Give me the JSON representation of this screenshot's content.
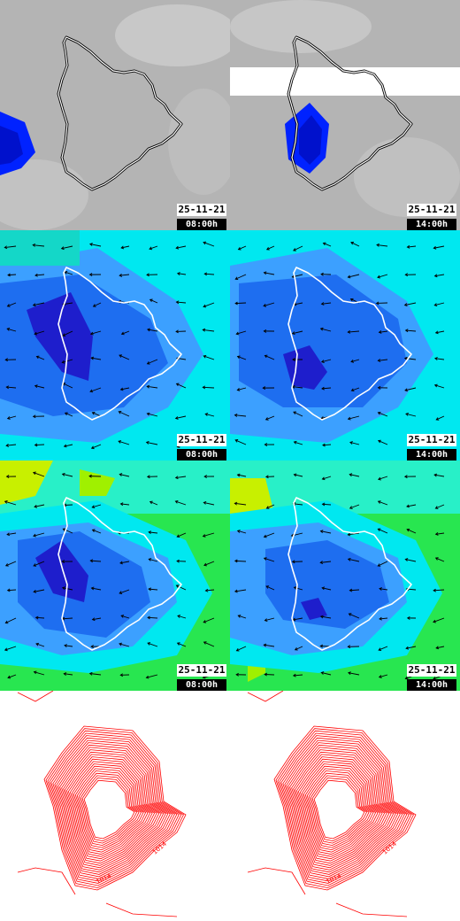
{
  "panels": [
    {
      "id": "cloud-0800",
      "layer": "cloud",
      "date": "25-11-21",
      "time": "08:00h"
    },
    {
      "id": "cloud-1400",
      "layer": "cloud",
      "date": "25-11-21",
      "time": "14:00h"
    },
    {
      "id": "wind-low-0800",
      "layer": "wind-low",
      "date": "25-11-21",
      "time": "08:00h"
    },
    {
      "id": "wind-low-1400",
      "layer": "wind-low",
      "date": "25-11-21",
      "time": "14:00h"
    },
    {
      "id": "wind-high-0800",
      "layer": "wind-high",
      "date": "25-11-21",
      "time": "08:00h"
    },
    {
      "id": "wind-high-1400",
      "layer": "wind-high",
      "date": "25-11-21",
      "time": "14:00h"
    },
    {
      "id": "pressure-0800",
      "layer": "pressure",
      "date": "",
      "time": ""
    },
    {
      "id": "pressure-1400",
      "layer": "pressure",
      "date": "",
      "time": ""
    }
  ],
  "isobar_labels": [
    "1014",
    "1014",
    "1014"
  ],
  "colors": {
    "cloud_background": "#b4b4b4",
    "precipitation": "#0022ff",
    "precipitation_core": "#0011cc",
    "wind_dark": "#1e1ecc",
    "wind_mid": "#1e6ef0",
    "wind_light": "#3ca0ff",
    "wind_cyan": "#00e8f0",
    "wind_turquoise": "#28f0c8",
    "wind_green": "#28e650",
    "wind_yellow": "#c8f000",
    "isobar": "#ff0000",
    "coastline_dark": "#000000",
    "coastline_light": "#ffffff",
    "wind_arrow": "#000000"
  },
  "icons": {
    "wind_arrow": "arrow-icon",
    "island": "coastline-icon"
  }
}
